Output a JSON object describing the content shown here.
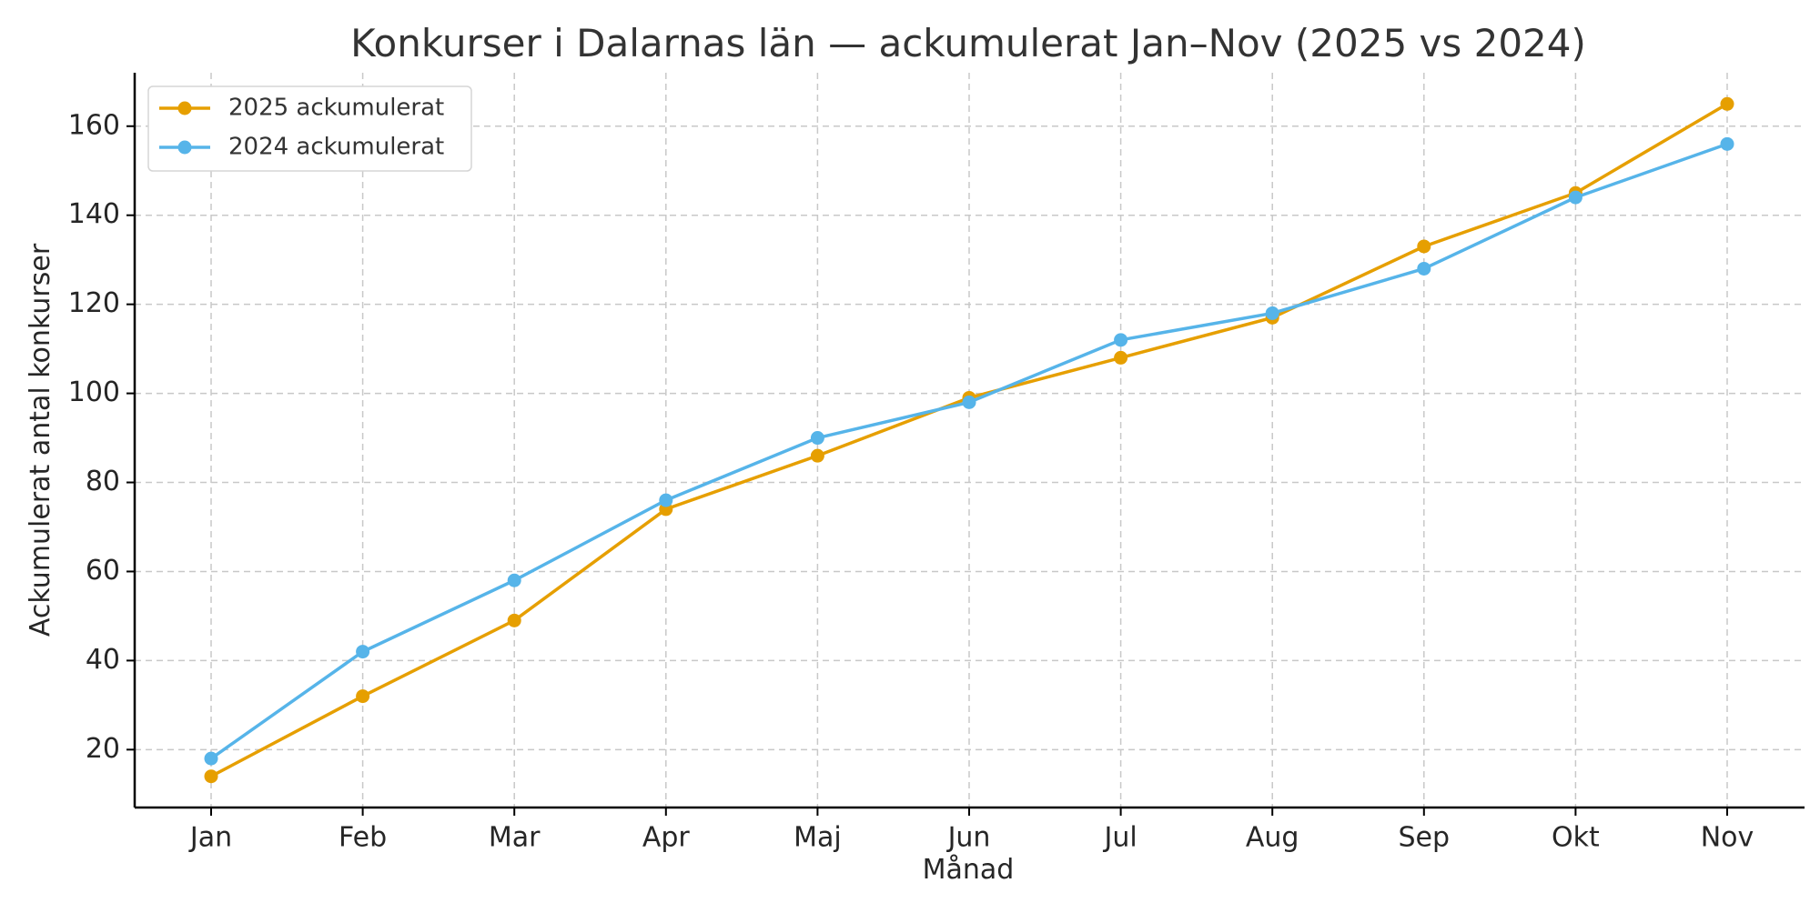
{
  "chart_data": {
    "type": "line",
    "title": "Konkurser i Dalarnas län — ackumulerat Jan–Nov (2025 vs 2024)",
    "xlabel": "Månad",
    "ylabel": "Ackumulerat antal konkurser",
    "categories": [
      "Jan",
      "Feb",
      "Mar",
      "Apr",
      "Maj",
      "Jun",
      "Jul",
      "Aug",
      "Sep",
      "Okt",
      "Nov"
    ],
    "ylim": [
      7,
      172
    ],
    "yticks": [
      20,
      40,
      60,
      80,
      100,
      120,
      140,
      160
    ],
    "grid": true,
    "legend_position": "top-left",
    "series": [
      {
        "name": "2025 ackumulerat",
        "color": "#E69F00",
        "values": [
          14,
          32,
          49,
          74,
          86,
          99,
          108,
          117,
          133,
          145,
          165
        ]
      },
      {
        "name": "2024 ackumulerat",
        "color": "#56B4E9",
        "values": [
          18,
          42,
          58,
          76,
          90,
          98,
          112,
          118,
          128,
          144,
          156
        ]
      }
    ]
  }
}
